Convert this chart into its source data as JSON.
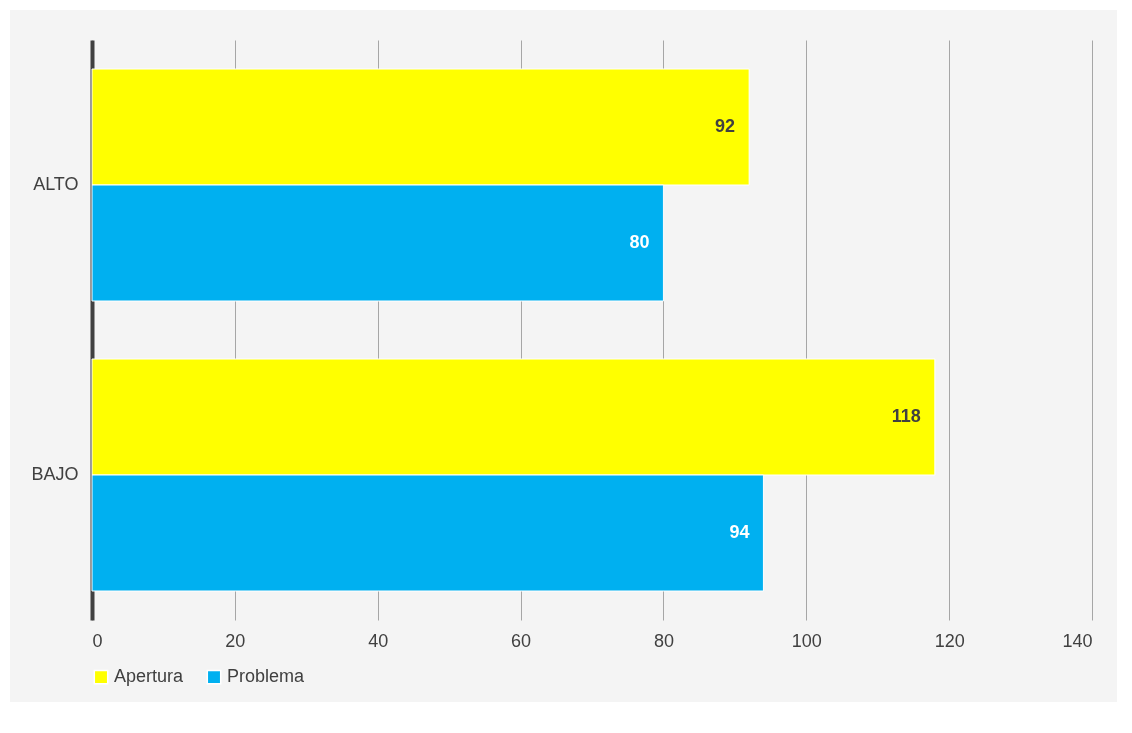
{
  "chart_data": {
    "type": "bar",
    "orientation": "horizontal",
    "categories": [
      "ALTO",
      "BAJO"
    ],
    "series": [
      {
        "name": "Apertura",
        "color": "#ffff00",
        "values": [
          92,
          118
        ]
      },
      {
        "name": "Problema",
        "color": "#00b0f0",
        "values": [
          80,
          94
        ]
      }
    ],
    "xlim": [
      0,
      140
    ],
    "xticks": [
      0,
      20,
      40,
      60,
      80,
      100,
      120,
      140
    ],
    "grid": "x",
    "legend": "bottom",
    "data_labels": true
  }
}
